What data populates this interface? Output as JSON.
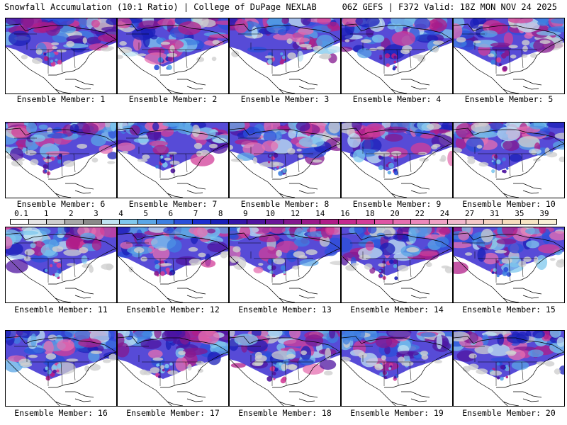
{
  "header": {
    "left": "Snowfall Accumulation (10:1 Ratio) | College of DuPage NEXLAB",
    "right": "06Z GEFS | F372 Valid: 18Z MON NOV 24 2025"
  },
  "members": [
    {
      "label": "Ensemble Member: 1"
    },
    {
      "label": "Ensemble Member: 2"
    },
    {
      "label": "Ensemble Member: 3"
    },
    {
      "label": "Ensemble Member: 4"
    },
    {
      "label": "Ensemble Member: 5"
    },
    {
      "label": "Ensemble Member: 6"
    },
    {
      "label": "Ensemble Member: 7"
    },
    {
      "label": "Ensemble Member: 8"
    },
    {
      "label": "Ensemble Member: 9"
    },
    {
      "label": "Ensemble Member: 10"
    },
    {
      "label": "Ensemble Member: 11"
    },
    {
      "label": "Ensemble Member: 12"
    },
    {
      "label": "Ensemble Member: 13"
    },
    {
      "label": "Ensemble Member: 14"
    },
    {
      "label": "Ensemble Member: 15"
    },
    {
      "label": "Ensemble Member: 16"
    },
    {
      "label": "Ensemble Member: 17"
    },
    {
      "label": "Ensemble Member: 18"
    },
    {
      "label": "Ensemble Member: 19"
    },
    {
      "label": "Ensemble Member: 20"
    }
  ],
  "colorbar": {
    "labels": [
      "0.1",
      "1",
      "2",
      "3",
      "4",
      "5",
      "6",
      "7",
      "8",
      "9",
      "10",
      "12",
      "14",
      "16",
      "18",
      "20",
      "22",
      "24",
      "27",
      "31",
      "35",
      "39"
    ],
    "colors": [
      "#ffffff",
      "#e6e6e6",
      "#cfcfcf",
      "#a8a8a8",
      "#8a8a8a",
      "#bfe3f2",
      "#7fc8ee",
      "#5aa6e6",
      "#3d7fe0",
      "#2a4fd9",
      "#1c2fd0",
      "#1a1fb8",
      "#3416a8",
      "#4f14a0",
      "#6a1699",
      "#84188f",
      "#9b1a8a",
      "#b01d88",
      "#c42a8f",
      "#d23e98",
      "#de55a4",
      "#e66fb0",
      "#ec88bb",
      "#f0a2c6",
      "#f2b8cd",
      "#f4c8c9",
      "#f6d3c3",
      "#f7ddbd",
      "#f8e6c4",
      "#faf0d6"
    ]
  }
}
